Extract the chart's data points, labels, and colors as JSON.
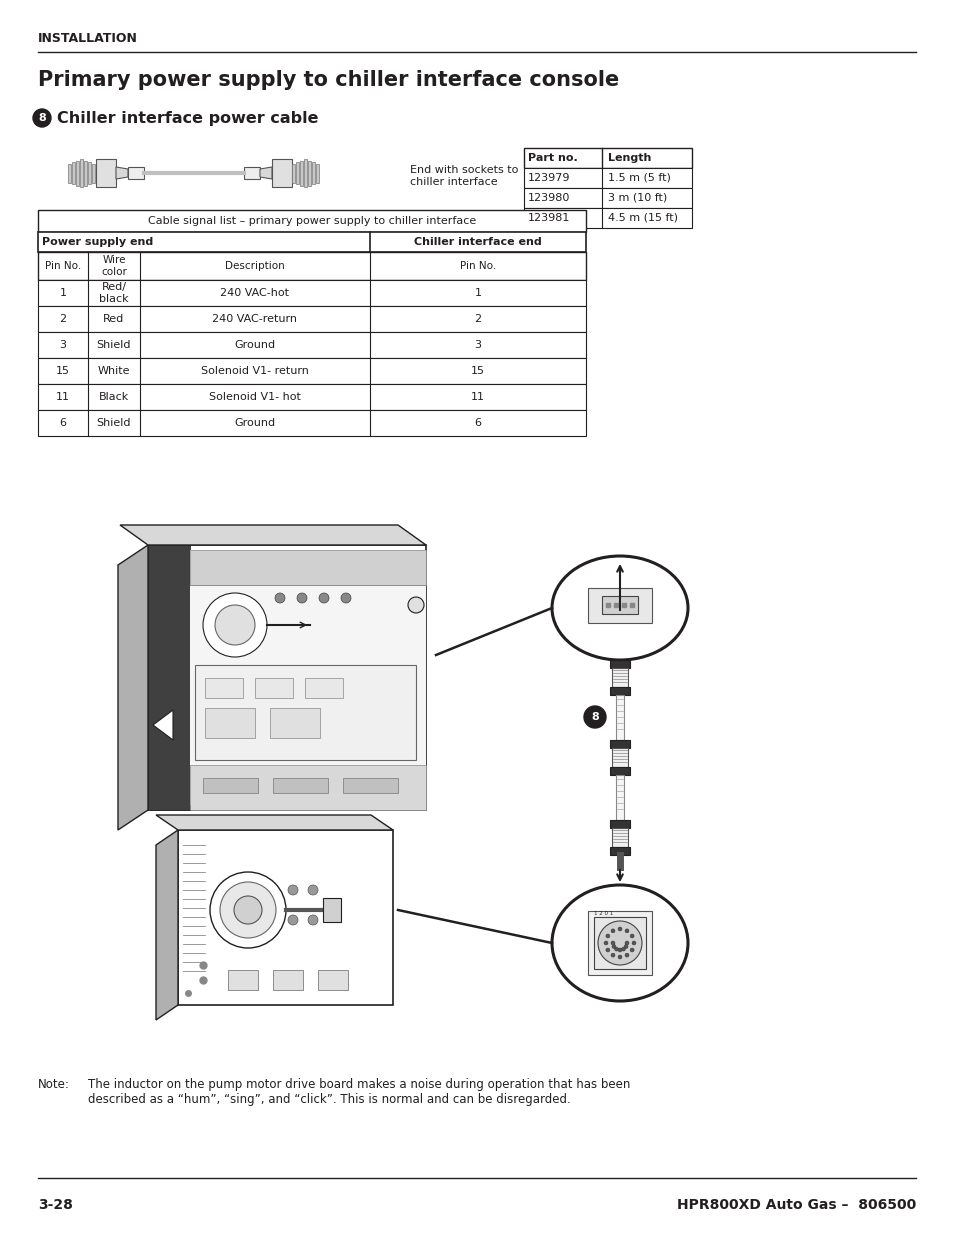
{
  "page_title": "Primary power supply to chiller interface console",
  "section_header": "INSTALLATION",
  "section_num": "8",
  "section_title": "Chiller interface power cable",
  "cable_label_line1": "End with sockets to",
  "cable_label_line2": "chiller interface",
  "part_table_headers": [
    "Part no.",
    "Length"
  ],
  "part_table_rows": [
    [
      "123979",
      "1.5 m (5 ft)"
    ],
    [
      "123980",
      "3 m (10 ft)"
    ],
    [
      "123981",
      "4.5 m (15 ft)"
    ]
  ],
  "signal_table_title": "Cable signal list – primary power supply to chiller interface",
  "signal_table_col1": "Power supply end",
  "signal_table_col2": "Chiller interface end",
  "signal_table_subheaders": [
    "Pin No.",
    "Wire\ncolor",
    "Description",
    "Pin No."
  ],
  "signal_table_rows": [
    [
      "1",
      "Red/\nblack",
      "240 VAC-hot",
      "1"
    ],
    [
      "2",
      "Red",
      "240 VAC-return",
      "2"
    ],
    [
      "3",
      "Shield",
      "Ground",
      "3"
    ],
    [
      "15",
      "White",
      "Solenoid V1- return",
      "15"
    ],
    [
      "11",
      "Black",
      "Solenoid V1- hot",
      "11"
    ],
    [
      "6",
      "Shield",
      "Ground",
      "6"
    ]
  ],
  "note_label": "Note:",
  "note_text": "The inductor on the pump motor drive board makes a noise during operation that has been\ndescribed as a “hum”, “sing”, and “click”. This is normal and can be disregarded.",
  "footer_left": "3-28",
  "footer_right": "HPR800XD Auto Gas –  806500",
  "bg_color": "#ffffff",
  "text_color": "#231f20"
}
